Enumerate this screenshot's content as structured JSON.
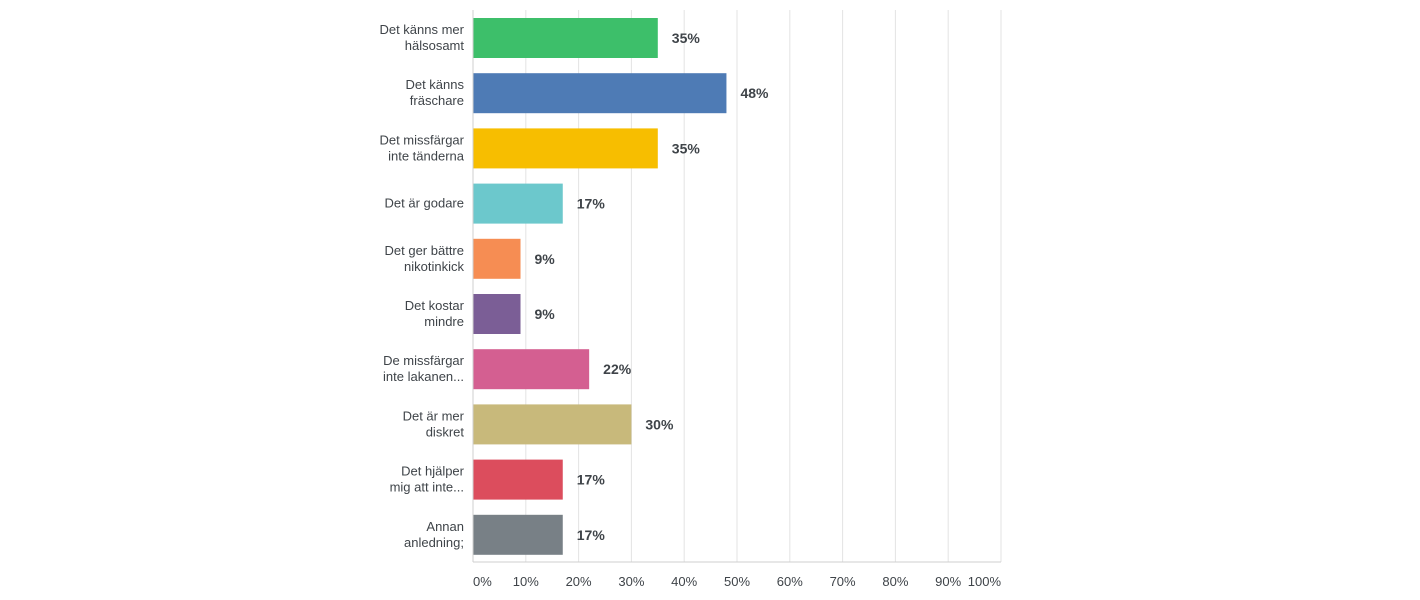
{
  "chart_data": {
    "type": "bar",
    "orientation": "horizontal",
    "categories": [
      [
        "Det känns mer",
        "hälsosamt"
      ],
      [
        "Det känns",
        "fräschare"
      ],
      [
        "Det missfärgar",
        "inte tänderna"
      ],
      [
        "Det är godare"
      ],
      [
        "Det ger bättre",
        "nikotinkick"
      ],
      [
        "Det kostar",
        "mindre"
      ],
      [
        "De missfärgar",
        "inte lakanen..."
      ],
      [
        "Det är mer",
        "diskret"
      ],
      [
        "Det hjälper",
        "mig att inte..."
      ],
      [
        "Annan",
        "anledning;"
      ]
    ],
    "values": [
      35,
      48,
      35,
      17,
      9,
      9,
      22,
      30,
      17,
      17
    ],
    "value_labels": [
      "35%",
      "48%",
      "35%",
      "17%",
      "9%",
      "9%",
      "22%",
      "30%",
      "17%",
      "17%"
    ],
    "colors": [
      "#3dbf6a",
      "#4e7bb5",
      "#f7be00",
      "#6cc8cc",
      "#f68d53",
      "#7b5e96",
      "#d45f91",
      "#c8b97b",
      "#dc4d5d",
      "#788086"
    ],
    "xlim": [
      0,
      100
    ],
    "ticks": [
      "0%",
      "10%",
      "20%",
      "30%",
      "40%",
      "50%",
      "60%",
      "70%",
      "80%",
      "90%",
      "100%"
    ],
    "grid": true,
    "title": "",
    "xlabel": "",
    "ylabel": ""
  }
}
